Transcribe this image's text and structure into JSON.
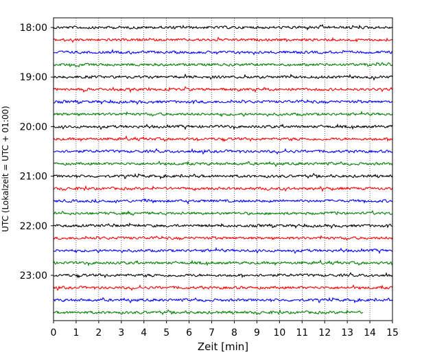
{
  "chart_data": {
    "type": "line",
    "title": "",
    "xlabel": "Zeit  [min]",
    "ylabel": "UTC (Lokalzeit = UTC + 01:00)",
    "xlim": [
      0,
      15
    ],
    "x_ticks": [
      "0",
      "1",
      "2",
      "3",
      "4",
      "5",
      "6",
      "7",
      "8",
      "9",
      "10",
      "11",
      "12",
      "13",
      "14",
      "15"
    ],
    "y_ticks": [
      "18:00",
      "19:00",
      "20:00",
      "21:00",
      "22:00",
      "23:00"
    ],
    "grid": "vertical dotted at each minute",
    "row_interval_minutes": 15,
    "colors": [
      "#000000",
      "#ff0000",
      "#0000ff",
      "#008000"
    ],
    "rows": [
      {
        "start": "18:00",
        "color": "#000000",
        "end_min": 15
      },
      {
        "start": "18:15",
        "color": "#ff0000",
        "end_min": 15
      },
      {
        "start": "18:30",
        "color": "#0000ff",
        "end_min": 15
      },
      {
        "start": "18:45",
        "color": "#008000",
        "end_min": 15
      },
      {
        "start": "19:00",
        "color": "#000000",
        "end_min": 15
      },
      {
        "start": "19:15",
        "color": "#ff0000",
        "end_min": 15
      },
      {
        "start": "19:30",
        "color": "#0000ff",
        "end_min": 15
      },
      {
        "start": "19:45",
        "color": "#008000",
        "end_min": 15
      },
      {
        "start": "20:00",
        "color": "#000000",
        "end_min": 15
      },
      {
        "start": "20:15",
        "color": "#ff0000",
        "end_min": 15
      },
      {
        "start": "20:30",
        "color": "#0000ff",
        "end_min": 15
      },
      {
        "start": "20:45",
        "color": "#008000",
        "end_min": 15
      },
      {
        "start": "21:00",
        "color": "#000000",
        "end_min": 15
      },
      {
        "start": "21:15",
        "color": "#ff0000",
        "end_min": 15
      },
      {
        "start": "21:30",
        "color": "#0000ff",
        "end_min": 15
      },
      {
        "start": "21:45",
        "color": "#008000",
        "end_min": 15
      },
      {
        "start": "22:00",
        "color": "#000000",
        "end_min": 15
      },
      {
        "start": "22:15",
        "color": "#ff0000",
        "end_min": 15
      },
      {
        "start": "22:30",
        "color": "#0000ff",
        "end_min": 15
      },
      {
        "start": "22:45",
        "color": "#008000",
        "end_min": 15
      },
      {
        "start": "23:00",
        "color": "#000000",
        "end_min": 15
      },
      {
        "start": "23:15",
        "color": "#ff0000",
        "end_min": 15
      },
      {
        "start": "23:30",
        "color": "#0000ff",
        "end_min": 15
      },
      {
        "start": "23:45",
        "color": "#008000",
        "end_min": 13.7
      }
    ]
  }
}
